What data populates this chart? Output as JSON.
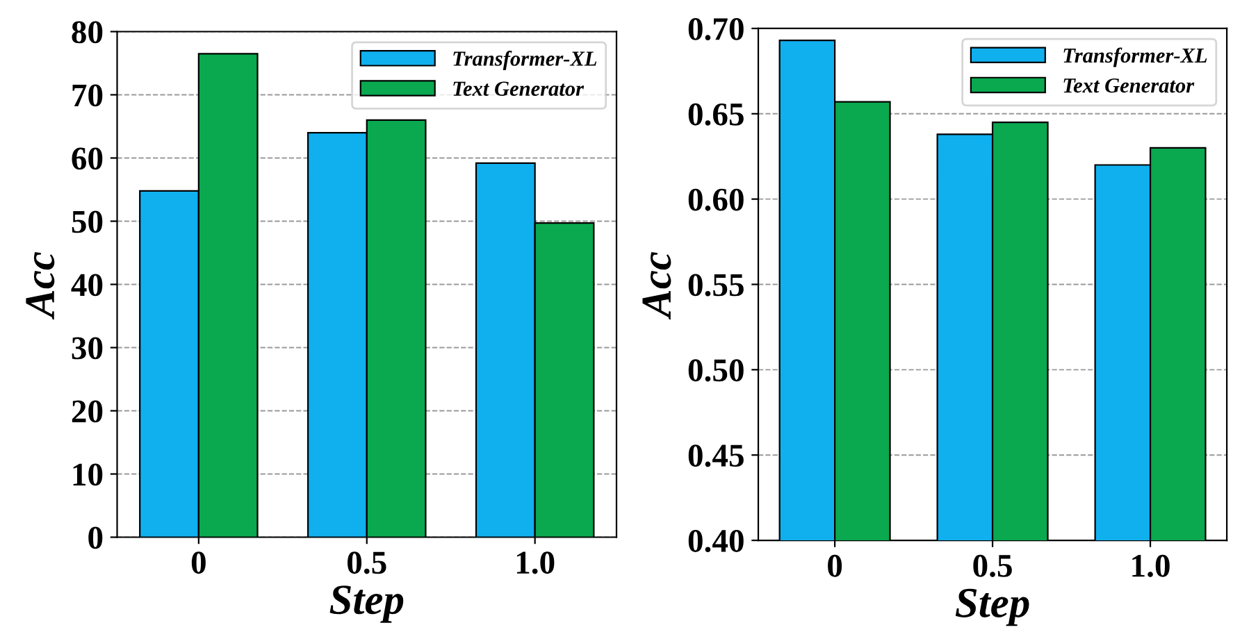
{
  "chart_data": [
    {
      "type": "bar",
      "xlabel": "Step",
      "ylabel": "Acc",
      "categories": [
        "0",
        "0.5",
        "1.0"
      ],
      "series": [
        {
          "name": "Transformer-XL",
          "color": "#10b0ef",
          "values": [
            54.8,
            64.0,
            59.2
          ]
        },
        {
          "name": "Text Generator",
          "color": "#0aa84f",
          "values": [
            76.5,
            66.0,
            49.7
          ]
        }
      ],
      "ylim": [
        0,
        80
      ],
      "yticks": [
        0,
        10,
        20,
        30,
        40,
        50,
        60,
        70,
        80
      ],
      "grid": "y",
      "legend": "top right"
    },
    {
      "type": "bar",
      "xlabel": "Step",
      "ylabel": "Acc",
      "categories": [
        "0",
        "0.5",
        "1.0"
      ],
      "series": [
        {
          "name": "Transformer-XL",
          "color": "#10b0ef",
          "values": [
            0.693,
            0.638,
            0.62
          ]
        },
        {
          "name": "Text Generator",
          "color": "#0aa84f",
          "values": [
            0.657,
            0.645,
            0.63
          ]
        }
      ],
      "ylim": [
        0.4,
        0.7
      ],
      "yticks": [
        {
          "value": 0.4,
          "label": "0.40"
        },
        {
          "value": 0.45,
          "label": "0.45"
        },
        {
          "value": 0.5,
          "label": "0.50"
        },
        {
          "value": 0.55,
          "label": "0.55"
        },
        {
          "value": 0.6,
          "label": "0.60"
        },
        {
          "value": 0.65,
          "label": "0.65"
        },
        {
          "value": 0.7,
          "label": "0.70"
        }
      ],
      "grid": "y",
      "legend": "top right"
    }
  ]
}
